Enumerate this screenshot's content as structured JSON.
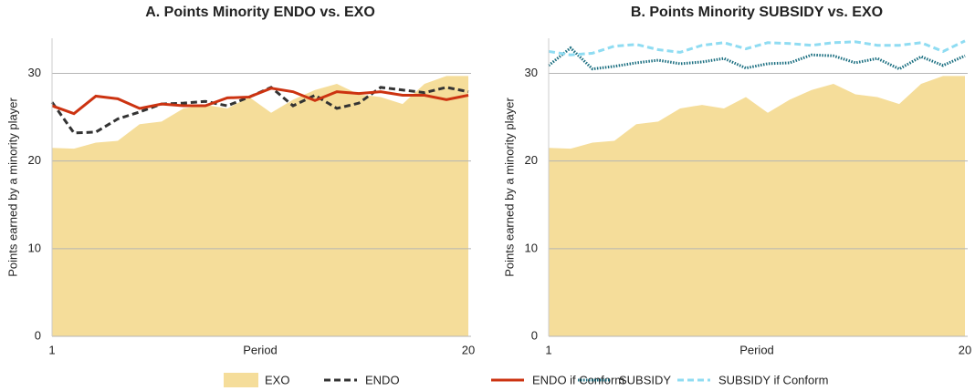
{
  "chart_data": [
    {
      "type": "line",
      "title": "A. Points Minority ENDO vs. EXO",
      "xlabel": "Period",
      "ylabel": "Points earned by a minority player",
      "x": [
        1,
        2,
        3,
        4,
        5,
        6,
        7,
        8,
        9,
        10,
        11,
        12,
        13,
        14,
        15,
        16,
        17,
        18,
        19,
        20
      ],
      "xlim": [
        1,
        20
      ],
      "xticks": [
        1,
        20
      ],
      "ylim": [
        0,
        34
      ],
      "yticks": [
        0,
        10,
        20,
        30
      ],
      "grid": true,
      "series": [
        {
          "name": "EXO",
          "color": "#f5dd9a",
          "style": "area",
          "values": [
            21.5,
            21.4,
            22.1,
            22.3,
            24.2,
            24.5,
            26,
            26.4,
            26,
            27.3,
            25.5,
            27,
            28.1,
            28.8,
            27.6,
            27.3,
            26.5,
            28.8,
            29.7,
            29.7
          ]
        },
        {
          "name": "ENDO",
          "color": "#333333",
          "style": "dashed",
          "values": [
            26.7,
            23.2,
            23.3,
            24.8,
            25.6,
            26.5,
            26.6,
            26.8,
            26.3,
            27.3,
            28.4,
            26.3,
            27.5,
            26,
            26.6,
            28.4,
            28.1,
            27.8,
            28.4,
            27.9
          ]
        },
        {
          "name": "ENDO if Conform",
          "color": "#cc3311",
          "style": "solid",
          "values": [
            26.3,
            25.4,
            27.4,
            27.1,
            26,
            26.5,
            26.3,
            26.3,
            27.2,
            27.3,
            28.3,
            27.9,
            26.9,
            27.9,
            27.7,
            27.9,
            27.5,
            27.5,
            27,
            27.5
          ]
        }
      ]
    },
    {
      "type": "line",
      "title": "B. Points Minority SUBSIDY vs. EXO",
      "xlabel": "Period",
      "ylabel": "Points earned by a minority player",
      "x": [
        1,
        2,
        3,
        4,
        5,
        6,
        7,
        8,
        9,
        10,
        11,
        12,
        13,
        14,
        15,
        16,
        17,
        18,
        19,
        20
      ],
      "xlim": [
        1,
        20
      ],
      "xticks": [
        1,
        20
      ],
      "ylim": [
        0,
        34
      ],
      "yticks": [
        0,
        10,
        20,
        30
      ],
      "grid": true,
      "series": [
        {
          "color": "#f5dd9a",
          "style": "area",
          "values": [
            21.5,
            21.4,
            22.1,
            22.3,
            24.2,
            24.5,
            26,
            26.4,
            26,
            27.3,
            25.5,
            27,
            28.1,
            28.8,
            27.6,
            27.3,
            26.5,
            28.8,
            29.7,
            29.7
          ]
        },
        {
          "name": "SUBSIDY",
          "color": "#1a6e80",
          "style": "dotted",
          "values": [
            30.9,
            32.9,
            30.5,
            30.8,
            31.2,
            31.5,
            31.1,
            31.3,
            31.7,
            30.6,
            31.1,
            31.2,
            32.1,
            32,
            31.2,
            31.7,
            30.5,
            31.9,
            30.9,
            32
          ]
        },
        {
          "name": "SUBSIDY if Conform",
          "color": "#8fdcf2",
          "style": "dashed",
          "values": [
            32.5,
            32.1,
            32.3,
            33.1,
            33.3,
            32.7,
            32.4,
            33.2,
            33.5,
            32.8,
            33.5,
            33.4,
            33.2,
            33.5,
            33.6,
            33.2,
            33.2,
            33.5,
            32.5,
            33.7
          ]
        }
      ]
    }
  ]
}
